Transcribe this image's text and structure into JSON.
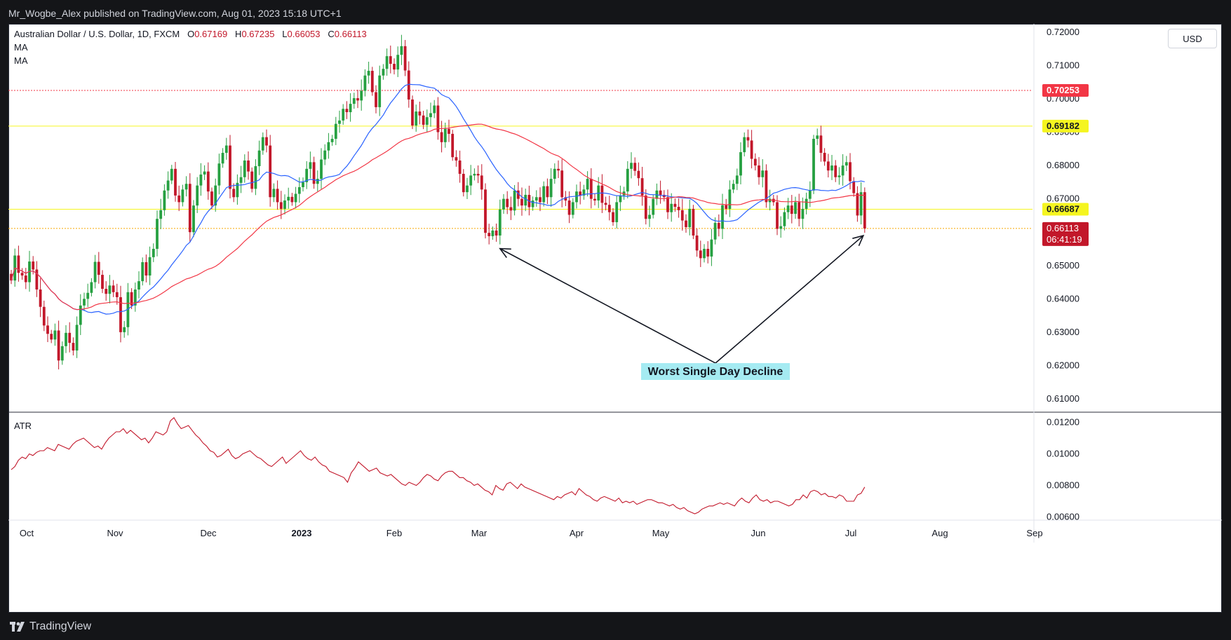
{
  "header": {
    "publisher": "Mr_Wogbe_Alex published on TradingView.com, Aug 01, 2023 15:18 UTC+1"
  },
  "legend": {
    "symbol": "Australian Dollar / U.S. Dollar, 1D, FXCM",
    "open_label": "O",
    "open": "0.67169",
    "high_label": "H",
    "high": "0.67235",
    "low_label": "L",
    "low": "0.66053",
    "close_label": "C",
    "close": "0.66113",
    "ma1": "MA",
    "ma2": "MA",
    "atr": "ATR"
  },
  "currency_button": "USD",
  "footer": {
    "brand": "TradingView"
  },
  "colors": {
    "up": "#26a041",
    "down": "#c2172a",
    "ma_fast": "#2962ff",
    "ma_slow": "#f23645",
    "atr": "#c2172a",
    "res_line": "#f23645",
    "level_line": "#f5f520"
  },
  "chart_data": [
    {
      "type": "candlestick",
      "x_ticks": [
        "Oct",
        "Nov",
        "Dec",
        "2023",
        "Feb",
        "Mar",
        "Apr",
        "May",
        "Jun",
        "Jul",
        "Aug",
        "Sep"
      ],
      "y_ticks": [
        "0.72000",
        "0.71000",
        "0.70000",
        "0.69000",
        "0.68000",
        "0.67000",
        "0.66000",
        "0.65000",
        "0.64000",
        "0.63000",
        "0.62000",
        "0.61000"
      ],
      "ylim": [
        0.606,
        0.7225
      ],
      "price_labels": [
        {
          "value": 0.70253,
          "text": "0.70253",
          "style": "red"
        },
        {
          "value": 0.69182,
          "text": "0.69182",
          "style": "yellow"
        },
        {
          "value": 0.66687,
          "text": "0.66687",
          "style": "yellow"
        },
        {
          "value": 0.66113,
          "text": "0.66113",
          "style": "close"
        }
      ],
      "countdown": "06:41:19",
      "annotation": "Worst Single Day Decline",
      "close_series": [
        0.6455,
        0.653,
        0.6478,
        0.647,
        0.645,
        0.6512,
        0.6488,
        0.6428,
        0.6376,
        0.632,
        0.6295,
        0.6278,
        0.6305,
        0.6215,
        0.6258,
        0.6298,
        0.6268,
        0.6245,
        0.6322,
        0.638,
        0.64,
        0.6418,
        0.645,
        0.6511,
        0.6472,
        0.643,
        0.6415,
        0.644,
        0.642,
        0.6405,
        0.63,
        0.6315,
        0.642,
        0.638,
        0.6428,
        0.6453,
        0.651,
        0.647,
        0.6525,
        0.655,
        0.664,
        0.6666,
        0.6725,
        0.6755,
        0.679,
        0.671,
        0.669,
        0.6728,
        0.6745,
        0.66,
        0.668,
        0.674,
        0.6773,
        0.6782,
        0.6722,
        0.668,
        0.674,
        0.6806,
        0.6838,
        0.686,
        0.673,
        0.6705,
        0.6748,
        0.6765,
        0.6815,
        0.6782,
        0.673,
        0.6798,
        0.6845,
        0.6885,
        0.686,
        0.6705,
        0.673,
        0.669,
        0.667,
        0.6695,
        0.6706,
        0.669,
        0.6715,
        0.6735,
        0.675,
        0.679,
        0.681,
        0.6745,
        0.676,
        0.6818,
        0.6845,
        0.687,
        0.688,
        0.6925,
        0.6935,
        0.697,
        0.696,
        0.6985,
        0.7002,
        0.6995,
        0.7024,
        0.707,
        0.7084,
        0.702,
        0.6975,
        0.707,
        0.709,
        0.7128,
        0.7105,
        0.7088,
        0.7132,
        0.7158,
        0.7085,
        0.6998,
        0.692,
        0.6962,
        0.695,
        0.6922,
        0.6945,
        0.6957,
        0.698,
        0.69,
        0.687,
        0.691,
        0.6895,
        0.6825,
        0.6815,
        0.6775,
        0.672,
        0.674,
        0.677,
        0.6775,
        0.677,
        0.6728,
        0.6598,
        0.6588,
        0.6605,
        0.659,
        0.6668,
        0.67,
        0.6675,
        0.6665,
        0.6725,
        0.67,
        0.668,
        0.6712,
        0.6675,
        0.6695,
        0.6705,
        0.669,
        0.6738,
        0.6705,
        0.676,
        0.679,
        0.6785,
        0.6705,
        0.6695,
        0.6652,
        0.669,
        0.6722,
        0.671,
        0.6728,
        0.676,
        0.67,
        0.6695,
        0.674,
        0.6688,
        0.6682,
        0.666,
        0.663,
        0.669,
        0.671,
        0.6722,
        0.679,
        0.6808,
        0.6784,
        0.6762,
        0.671,
        0.664,
        0.6652,
        0.67,
        0.6725,
        0.6712,
        0.6705,
        0.666,
        0.6685,
        0.6676,
        0.6666,
        0.6635,
        0.6615,
        0.667,
        0.659,
        0.6545,
        0.6522,
        0.655,
        0.6527,
        0.6578,
        0.6628,
        0.661,
        0.6681,
        0.667,
        0.6728,
        0.6745,
        0.677,
        0.684,
        0.6885,
        0.6875,
        0.682,
        0.68,
        0.6765,
        0.6785,
        0.669,
        0.67,
        0.669,
        0.661,
        0.6618,
        0.666,
        0.668,
        0.6655,
        0.669,
        0.664,
        0.667,
        0.67,
        0.6725,
        0.688,
        0.689,
        0.6838,
        0.6812,
        0.6785,
        0.68,
        0.6765,
        0.677,
        0.68,
        0.681,
        0.6753,
        0.6717,
        0.665,
        0.672,
        0.6611
      ],
      "ma_fast_period": 20,
      "ma_slow_period": 50
    },
    {
      "type": "line",
      "name": "ATR",
      "y_ticks": [
        "0.01200",
        "0.01000",
        "0.00800",
        "0.00600"
      ],
      "ylim": [
        0.0058,
        0.0126
      ],
      "values": [
        0.009,
        0.0092,
        0.0096,
        0.0098,
        0.0097,
        0.01,
        0.0099,
        0.0101,
        0.0102,
        0.0102,
        0.0104,
        0.0103,
        0.0102,
        0.0106,
        0.0105,
        0.0104,
        0.0103,
        0.0106,
        0.0108,
        0.0109,
        0.011,
        0.0108,
        0.0106,
        0.0104,
        0.0105,
        0.0103,
        0.0107,
        0.011,
        0.0112,
        0.0114,
        0.0114,
        0.0116,
        0.0113,
        0.0115,
        0.0113,
        0.0111,
        0.0109,
        0.011,
        0.0107,
        0.011,
        0.0114,
        0.0113,
        0.0112,
        0.0114,
        0.0121,
        0.0123,
        0.0119,
        0.0116,
        0.0117,
        0.0118,
        0.0115,
        0.0112,
        0.011,
        0.0107,
        0.0105,
        0.0102,
        0.0101,
        0.0098,
        0.0099,
        0.0101,
        0.0103,
        0.0099,
        0.0097,
        0.0098,
        0.01,
        0.0101,
        0.0102,
        0.01,
        0.0098,
        0.0097,
        0.0095,
        0.0093,
        0.0092,
        0.0094,
        0.0096,
        0.0098,
        0.0094,
        0.0096,
        0.0098,
        0.01,
        0.0102,
        0.0099,
        0.0097,
        0.0096,
        0.0098,
        0.0095,
        0.0093,
        0.0092,
        0.0089,
        0.0088,
        0.0087,
        0.0086,
        0.0085,
        0.0082,
        0.0088,
        0.0091,
        0.0095,
        0.0093,
        0.0091,
        0.0089,
        0.009,
        0.0091,
        0.0088,
        0.0087,
        0.0086,
        0.0087,
        0.0085,
        0.0083,
        0.0081,
        0.008,
        0.0082,
        0.0081,
        0.008,
        0.0082,
        0.0085,
        0.0087,
        0.0086,
        0.0084,
        0.0083,
        0.0086,
        0.0088,
        0.0089,
        0.0089,
        0.0087,
        0.0085,
        0.0085,
        0.0083,
        0.0082,
        0.008,
        0.0081,
        0.0079,
        0.0077,
        0.0076,
        0.0074,
        0.008,
        0.0078,
        0.0077,
        0.0081,
        0.0082,
        0.008,
        0.0078,
        0.0081,
        0.0079,
        0.0078,
        0.0077,
        0.0076,
        0.0075,
        0.0074,
        0.0073,
        0.0072,
        0.0071,
        0.0073,
        0.0072,
        0.0074,
        0.0075,
        0.0076,
        0.0074,
        0.0078,
        0.0076,
        0.0074,
        0.0073,
        0.0071,
        0.007,
        0.0072,
        0.0073,
        0.0072,
        0.0071,
        0.007,
        0.0072,
        0.0069,
        0.007,
        0.0069,
        0.007,
        0.0068,
        0.0069,
        0.007,
        0.0071,
        0.0071,
        0.007,
        0.0069,
        0.0069,
        0.0068,
        0.0067,
        0.0068,
        0.0066,
        0.0065,
        0.0066,
        0.0064,
        0.0063,
        0.0062,
        0.0063,
        0.0065,
        0.0066,
        0.0067,
        0.0067,
        0.0068,
        0.0069,
        0.0068,
        0.0069,
        0.0068,
        0.0067,
        0.007,
        0.0072,
        0.007,
        0.0069,
        0.0072,
        0.0074,
        0.0071,
        0.007,
        0.0071,
        0.0069,
        0.007,
        0.007,
        0.0069,
        0.0068,
        0.0067,
        0.0068,
        0.0071,
        0.0071,
        0.0074,
        0.0072,
        0.0076,
        0.0077,
        0.0076,
        0.0074,
        0.0075,
        0.0073,
        0.0073,
        0.0072,
        0.0074,
        0.0073,
        0.007,
        0.007,
        0.007,
        0.0074,
        0.0075,
        0.0079
      ]
    }
  ]
}
